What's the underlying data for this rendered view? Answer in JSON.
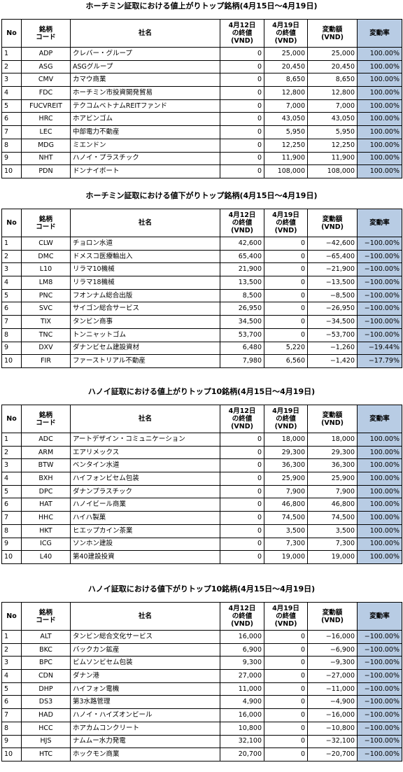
{
  "tables": [
    {
      "title": "ホーチミン証取における値上がりトップ銘柄(4月15日～4月19日)",
      "header": [
        "No",
        "銘柄\nコード",
        "社名",
        "4月12日\nの終値\n(VND)",
        "4月19日\nの終値\n(VND)",
        "変動額\n(VND)",
        "変動率"
      ],
      "rows": [
        [
          "1",
          "ADP",
          "クレバー・グループ",
          "0",
          "25,000",
          "25,000",
          "100.00%"
        ],
        [
          "2",
          "ASG",
          "ASGグループ",
          "0",
          "20,450",
          "20,450",
          "100.00%"
        ],
        [
          "3",
          "CMV",
          "カマウ商業",
          "0",
          "8,650",
          "8,650",
          "100.00%"
        ],
        [
          "4",
          "FDC",
          "ホーチミン市投資開発貿易",
          "0",
          "12,800",
          "12,800",
          "100.00%"
        ],
        [
          "5",
          "FUCVREIT",
          "テクコムベトナムREITファンド",
          "0",
          "7,000",
          "7,000",
          "100.00%"
        ],
        [
          "6",
          "HRC",
          "ホアビンゴム",
          "0",
          "43,050",
          "43,050",
          "100.00%"
        ],
        [
          "7",
          "LEC",
          "中部電力不動産",
          "0",
          "5,950",
          "5,950",
          "100.00%"
        ],
        [
          "8",
          "MDG",
          "ミエンドン",
          "0",
          "12,250",
          "12,250",
          "100.00%"
        ],
        [
          "9",
          "NHT",
          "ハノイ・プラスチック",
          "0",
          "11,900",
          "11,900",
          "100.00%"
        ],
        [
          "10",
          "PDN",
          "ドンナイポート",
          "0",
          "108,000",
          "108,000",
          "100.00%"
        ]
      ]
    },
    {
      "title": "ホーチミン証取における値下がりトップ銘柄(4月15日～4月19日)",
      "header": [
        "No",
        "銘柄\nコード",
        "社名",
        "4月12日\nの終値\n(VND)",
        "4月19日\nの終値\n(VND)",
        "変動額\n(VND)",
        "変動率"
      ],
      "rows": [
        [
          "1",
          "CLW",
          "チョロン水道",
          "42,600",
          "0",
          "−42,600",
          "−100.00%"
        ],
        [
          "2",
          "DMC",
          "ドメスコ医療輸出入",
          "65,400",
          "0",
          "−65,400",
          "−100.00%"
        ],
        [
          "3",
          "L10",
          "リラマ10機械",
          "21,900",
          "0",
          "−21,900",
          "−100.00%"
        ],
        [
          "4",
          "LM8",
          "リラマ18機械",
          "13,500",
          "0",
          "−13,500",
          "−100.00%"
        ],
        [
          "5",
          "PNC",
          "フオンナム総合出版",
          "8,500",
          "0",
          "−8,500",
          "−100.00%"
        ],
        [
          "6",
          "SVC",
          "サイゴン総合サービス",
          "26,950",
          "0",
          "−26,950",
          "−100.00%"
        ],
        [
          "7",
          "TIX",
          "タンビン商事",
          "34,500",
          "0",
          "−34,500",
          "−100.00%"
        ],
        [
          "8",
          "TNC",
          "トンニャットゴム",
          "53,700",
          "0",
          "−53,700",
          "−100.00%"
        ],
        [
          "9",
          "DXV",
          "ダナンビセム建設資材",
          "6,480",
          "5,220",
          "−1,260",
          "−19.44%"
        ],
        [
          "10",
          "FIR",
          "ファーストリアル不動産",
          "7,980",
          "6,560",
          "−1,420",
          "−17.79%"
        ]
      ]
    },
    {
      "title": "ハノイ証取における値上がりトップ10銘柄(4月15日～4月19日)",
      "header": [
        "No",
        "銘柄\nコード",
        "社名",
        "4月12日\nの終値\n(VND)",
        "4月19日\nの終値\n(VND)",
        "変動額\n(VND)",
        "変動率"
      ],
      "rows": [
        [
          "1",
          "ADC",
          "アートデザイン・コミュニケーション",
          "0",
          "18,000",
          "18,000",
          "100.00%"
        ],
        [
          "2",
          "ARM",
          "エアリメックス",
          "0",
          "29,300",
          "29,300",
          "100.00%"
        ],
        [
          "3",
          "BTW",
          "ベンタイン水道",
          "0",
          "36,300",
          "36,300",
          "100.00%"
        ],
        [
          "4",
          "BXH",
          "ハイフォンビセム包装",
          "0",
          "25,900",
          "25,900",
          "100.00%"
        ],
        [
          "5",
          "DPC",
          "ダナンプラスチック",
          "0",
          "7,900",
          "7,900",
          "100.00%"
        ],
        [
          "6",
          "HAT",
          "ハノイビール商業",
          "0",
          "46,800",
          "46,800",
          "100.00%"
        ],
        [
          "7",
          "HHC",
          "ハイハ製菓",
          "0",
          "74,500",
          "74,500",
          "100.00%"
        ],
        [
          "8",
          "HKT",
          "ヒエップカイン茶業",
          "0",
          "3,500",
          "3,500",
          "100.00%"
        ],
        [
          "9",
          "ICG",
          "ソンホン建設",
          "0",
          "7,300",
          "7,300",
          "100.00%"
        ],
        [
          "10",
          "L40",
          "第40建設投資",
          "0",
          "19,000",
          "19,000",
          "100.00%"
        ]
      ]
    },
    {
      "title": "ハノイ証取における値下がりトップ10銘柄(4月15日～4月19日)",
      "header": [
        "No",
        "銘柄\nコード",
        "社名",
        "4月12日\nの終値\n(VND)",
        "4月19日\nの終値\n(VND)",
        "変動額\n(VND)",
        "変動率"
      ],
      "rows": [
        [
          "1",
          "ALT",
          "タンビン総合文化サービス",
          "16,000",
          "0",
          "−16,000",
          "−100.00%"
        ],
        [
          "2",
          "BKC",
          "バックカン鉱産",
          "6,900",
          "0",
          "−6,900",
          "−100.00%"
        ],
        [
          "3",
          "BPC",
          "ビムソンビセム包装",
          "9,300",
          "0",
          "−9,300",
          "−100.00%"
        ],
        [
          "4",
          "CDN",
          "ダナン港",
          "27,000",
          "0",
          "−27,000",
          "−100.00%"
        ],
        [
          "5",
          "DHP",
          "ハイフォン電機",
          "11,000",
          "0",
          "−11,000",
          "−100.00%"
        ],
        [
          "6",
          "DS3",
          "第3水路管理",
          "4,900",
          "0",
          "−4,900",
          "−100.00%"
        ],
        [
          "7",
          "HAD",
          "ハノイ・ハイズオンビール",
          "16,000",
          "0",
          "−16,000",
          "−100.00%"
        ],
        [
          "8",
          "HCC",
          "ホアカムコンクリート",
          "10,800",
          "0",
          "−10,800",
          "−100.00%"
        ],
        [
          "9",
          "HJS",
          "ナムムー水力発電",
          "32,100",
          "0",
          "−32,100",
          "−100.00%"
        ],
        [
          "10",
          "HTC",
          "ホックモン商業",
          "20,700",
          "0",
          "−20,700",
          "−100.00%"
        ]
      ]
    }
  ]
}
